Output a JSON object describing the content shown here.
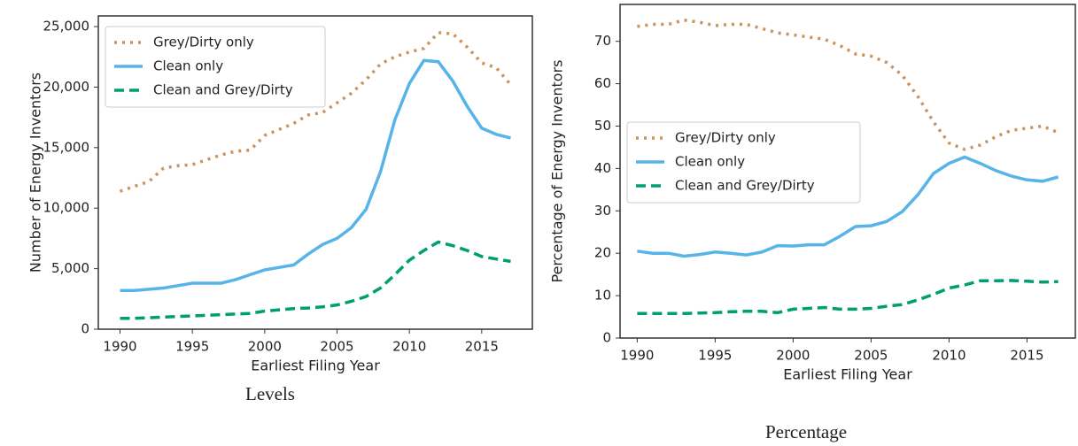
{
  "chart_data": [
    {
      "type": "line",
      "caption": "Levels",
      "xlabel": "Earliest Filing Year",
      "ylabel": "Number of Energy Inventors",
      "x": [
        1990,
        1991,
        1992,
        1993,
        1994,
        1995,
        1996,
        1997,
        1998,
        1999,
        2000,
        2001,
        2002,
        2003,
        2004,
        2005,
        2006,
        2007,
        2008,
        2009,
        2010,
        2011,
        2012,
        2013,
        2014,
        2015,
        2016,
        2017
      ],
      "xlim": [
        1988.5,
        2018.5
      ],
      "xticks": [
        1990,
        1995,
        2000,
        2005,
        2010,
        2015
      ],
      "ylim": [
        0,
        25880
      ],
      "yticks": [
        0,
        {
          "value": 5000,
          "label": "5,000"
        },
        {
          "value": 10000,
          "label": "10,000"
        },
        {
          "value": 15000,
          "label": "15,000"
        },
        {
          "value": 20000,
          "label": "20,000"
        },
        {
          "value": 25000,
          "label": "25,000"
        }
      ],
      "legend": "upper left",
      "series": [
        {
          "name": "Grey/Dirty only",
          "color": "#c9925e",
          "linestyle": "dotted",
          "values": [
            11400,
            11800,
            12200,
            13300,
            13500,
            13600,
            14000,
            14400,
            14700,
            14800,
            16000,
            16500,
            17000,
            17700,
            17900,
            18700,
            19500,
            20600,
            21900,
            22500,
            22900,
            23200,
            24500,
            24400,
            23300,
            22000,
            21600,
            20200
          ]
        },
        {
          "name": "Clean only",
          "color": "#56b4e9",
          "linestyle": "solid",
          "values": [
            3200,
            3200,
            3300,
            3400,
            3600,
            3800,
            3800,
            3800,
            4100,
            4500,
            4900,
            5100,
            5300,
            6200,
            7000,
            7500,
            8400,
            9900,
            13000,
            17300,
            20300,
            22200,
            22100,
            20500,
            18400,
            16600,
            16100,
            15800
          ]
        },
        {
          "name": "Clean and Grey/Dirty",
          "color": "#009e73",
          "linestyle": "dashed",
          "values": [
            900,
            900,
            950,
            1000,
            1050,
            1100,
            1150,
            1200,
            1250,
            1300,
            1500,
            1600,
            1700,
            1750,
            1850,
            2000,
            2300,
            2700,
            3400,
            4500,
            5700,
            6500,
            7200,
            6900,
            6500,
            6000,
            5800,
            5600
          ]
        }
      ]
    },
    {
      "type": "line",
      "caption": "Percentage",
      "xlabel": "Earliest Filing Year",
      "ylabel": "Percentage of Energy Inventors",
      "x": [
        1990,
        1991,
        1992,
        1993,
        1994,
        1995,
        1996,
        1997,
        1998,
        1999,
        2000,
        2001,
        2002,
        2003,
        2004,
        2005,
        2006,
        2007,
        2008,
        2009,
        2010,
        2011,
        2012,
        2013,
        2014,
        2015,
        2016,
        2017
      ],
      "xlim": [
        1988.9,
        2018.1
      ],
      "xticks": [
        1990,
        1995,
        2000,
        2005,
        2010,
        2015
      ],
      "ylim": [
        0,
        78.7
      ],
      "yticks": [
        0,
        10,
        20,
        30,
        40,
        50,
        60,
        70
      ],
      "legend": "center left",
      "series": [
        {
          "name": "Grey/Dirty only",
          "color": "#c9925e",
          "linestyle": "dotted",
          "values": [
            73.5,
            74,
            74,
            75,
            74.5,
            73.7,
            74,
            74,
            73,
            72,
            71.5,
            71,
            70.5,
            69,
            67,
            66.5,
            65,
            62,
            57,
            51,
            46,
            44.5,
            45.5,
            47.5,
            49,
            49.5,
            50,
            48.5
          ]
        },
        {
          "name": "Clean only",
          "color": "#56b4e9",
          "linestyle": "solid",
          "values": [
            20.5,
            20,
            20,
            19.3,
            19.7,
            20.3,
            20,
            19.6,
            20.3,
            21.8,
            21.7,
            22,
            22,
            24,
            26.3,
            26.5,
            27.5,
            29.8,
            33.8,
            38.8,
            41.2,
            42.7,
            41.2,
            39.5,
            38.2,
            37.3,
            37,
            38
          ]
        },
        {
          "name": "Clean and Grey/Dirty",
          "color": "#009e73",
          "linestyle": "dashed",
          "values": [
            5.8,
            5.8,
            5.8,
            5.8,
            5.9,
            6,
            6.2,
            6.3,
            6.3,
            6,
            6.8,
            7,
            7.2,
            6.8,
            6.8,
            7,
            7.5,
            7.9,
            9,
            10.3,
            11.8,
            12.5,
            13.5,
            13.5,
            13.6,
            13.4,
            13.2,
            13.3
          ]
        }
      ]
    }
  ]
}
